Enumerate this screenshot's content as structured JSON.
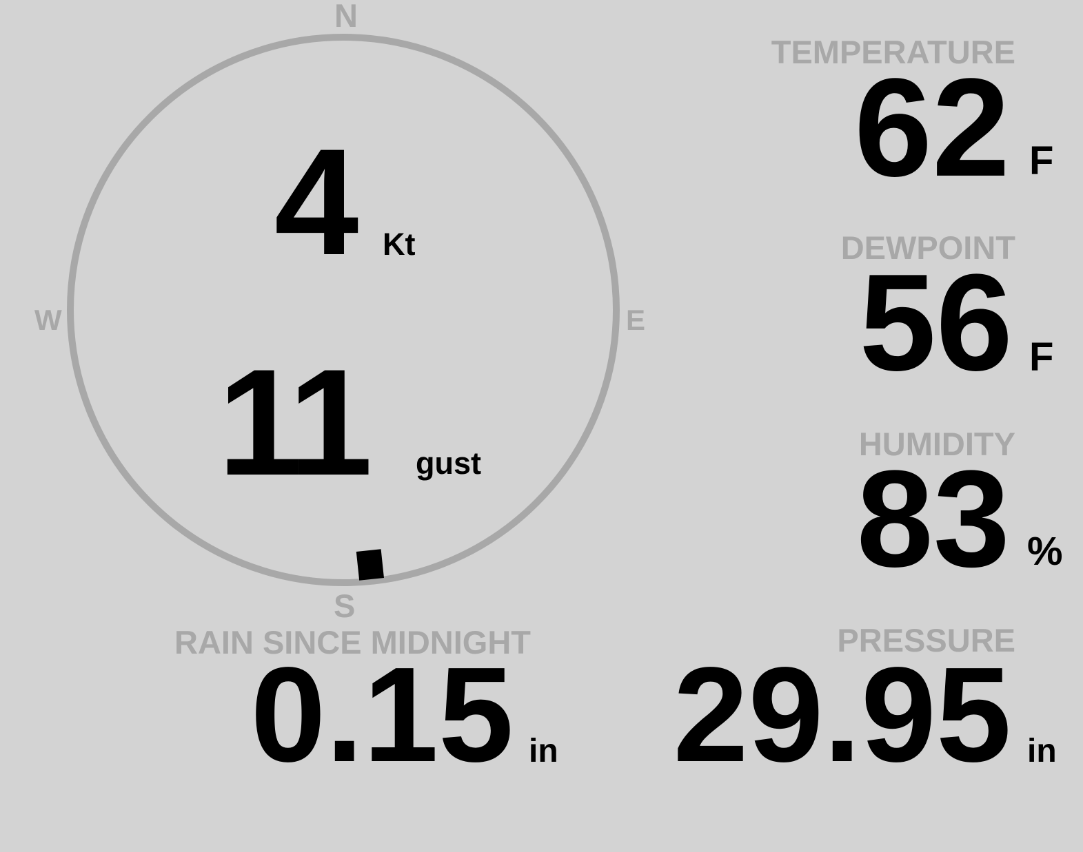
{
  "wind": {
    "speed": "4",
    "speed_unit": "Kt",
    "gust": "11",
    "gust_label": "gust",
    "direction_deg": 174,
    "cardinals": {
      "n": "N",
      "e": "E",
      "s": "S",
      "w": "W"
    }
  },
  "temperature": {
    "label": "TEMPERATURE",
    "value": "62",
    "unit": "F"
  },
  "dewpoint": {
    "label": "DEWPOINT",
    "value": "56",
    "unit": "F"
  },
  "humidity": {
    "label": "HUMIDITY",
    "value": "83",
    "unit": "%"
  },
  "pressure": {
    "label": "PRESSURE",
    "value": "29.95",
    "unit": "in"
  },
  "rain": {
    "label": "RAIN SINCE MIDNIGHT",
    "value": "0.15",
    "unit": "in"
  },
  "colors": {
    "background": "#d3d3d3",
    "label": "#a8a8a8",
    "value": "#000000"
  }
}
